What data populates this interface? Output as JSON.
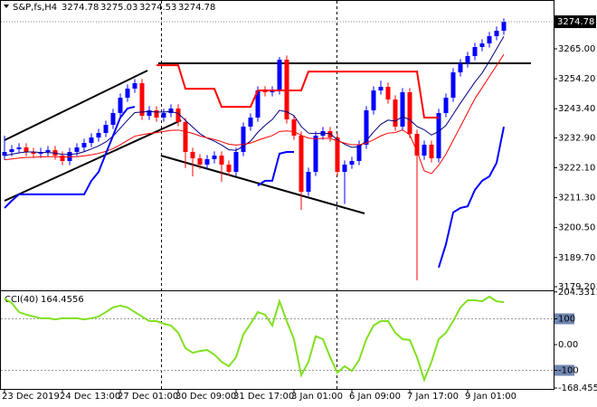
{
  "chart_data": [
    {
      "type": "candlestick",
      "title": "S&P,fs,H4",
      "ohlc": [
        3274.78,
        3275.03,
        3274.53,
        3274.78
      ],
      "categories": [
        "23 Dec 2019",
        null,
        null,
        null,
        null,
        null,
        null,
        null,
        "24 Dec 13:00",
        null,
        null,
        null,
        null,
        null,
        null,
        null,
        "27 Dec 01:00",
        null,
        null,
        null,
        null,
        null,
        null,
        null,
        "30 Dec 09:00",
        null,
        null,
        null,
        null,
        null,
        null,
        null,
        "31 Dec 17:00",
        null,
        null,
        null,
        null,
        null,
        null,
        null,
        "3 Jan 01:00",
        null,
        null,
        null,
        null,
        null,
        null,
        null,
        "6 Jan 09:00",
        null,
        null,
        null,
        null,
        null,
        null,
        null,
        "7 Jan 17:00",
        null,
        null,
        null,
        null,
        null,
        null,
        null,
        "9 Jan 01:00",
        null,
        null,
        null,
        null,
        null
      ],
      "open": [
        3226.5,
        3227.81,
        3228.79,
        3229.44,
        3227.81,
        3227.16,
        3227.81,
        3228.46,
        3226.5,
        3224.55,
        3227.81,
        3229.44,
        3231.07,
        3233.03,
        3234.66,
        3237.6,
        3241.84,
        3247.38,
        3250.65,
        3252.6,
        3240.86,
        3242.82,
        3240.21,
        3241.84,
        3243.47,
        3238.57,
        3227.81,
        3225.52,
        3223.24,
        3225.2,
        3226.5,
        3223.24,
        3220.63,
        3227.81,
        3236.94,
        3240.21,
        3249.99,
        3249.34,
        3249.99,
        3261.09,
        3239.55,
        3233.68,
        3213.45,
        3220.63,
        3233.68,
        3235.31,
        3233.03,
        3220.63,
        3223.24,
        3224.55,
        3230.42,
        3242.82,
        3249.99,
        3251.3,
        3246.73,
        3236.94,
        3249.34,
        3234.33,
        3226.5,
        3230.42,
        3225.52,
        3241.84,
        3247.38,
        3256.52,
        3259.78,
        3262.39,
        3265.65,
        3266.96,
        3269.57,
        3271.53
      ],
      "high": [
        3233.68,
        3230.29,
        3230.94,
        3230.94,
        3229.31,
        3229.31,
        3229.96,
        3229.96,
        3228,
        3229.31,
        3230.94,
        3232.57,
        3234.53,
        3236.16,
        3239.1,
        3243.34,
        3248.88,
        3252.15,
        3254.1,
        3254.1,
        3244.32,
        3244.32,
        3243.34,
        3244.97,
        3244.97,
        3240.07,
        3229.31,
        3227.02,
        3226.7,
        3228,
        3228,
        3224.74,
        3229.31,
        3238.44,
        3241.71,
        3251.49,
        3251.49,
        3251.49,
        3262.07,
        3262.59,
        3241.05,
        3235.18,
        3222.13,
        3235.18,
        3236.81,
        3236.81,
        3234.53,
        3224.74,
        3226.05,
        3231.92,
        3244.32,
        3251.49,
        3253.5,
        3252.8,
        3248.23,
        3250.84,
        3250.84,
        3235.83,
        3231.92,
        3231.92,
        3243.34,
        3248.88,
        3258.02,
        3261.28,
        3263.89,
        3267.15,
        3268.46,
        3271.07,
        3273.03,
        3276
      ],
      "low": [
        3225,
        3226.31,
        3227.29,
        3226.31,
        3225.66,
        3225.66,
        3226.31,
        3225,
        3223.05,
        3223.05,
        3226.31,
        3227.94,
        3229.57,
        3231.53,
        3233.16,
        3236.1,
        3240.34,
        3245.88,
        3249.15,
        3239.36,
        3239.36,
        3238.71,
        3238.71,
        3240.34,
        3237.07,
        3222,
        3219,
        3221.74,
        3221.74,
        3223.7,
        3217,
        3219.13,
        3219.13,
        3226.31,
        3235.44,
        3238.71,
        3247.84,
        3247.84,
        3248.49,
        3238.05,
        3232.18,
        3206.93,
        3211.95,
        3219.13,
        3232.18,
        3231.53,
        3219.13,
        3209,
        3221.74,
        3223.05,
        3228.92,
        3241.32,
        3248.49,
        3245.23,
        3235.44,
        3235.44,
        3232.83,
        3181.48,
        3225,
        3224.02,
        3224.02,
        3240.34,
        3245.88,
        3255.02,
        3258.28,
        3260.89,
        3264.15,
        3265.46,
        3268.07,
        3270.03
      ],
      "close": [
        3227.81,
        3228.79,
        3229.44,
        3227.81,
        3227.16,
        3227.81,
        3228.46,
        3226.5,
        3224.55,
        3227.81,
        3229.44,
        3231.07,
        3233.03,
        3234.66,
        3237.6,
        3241.84,
        3247.38,
        3250.65,
        3252.6,
        3240.86,
        3242.82,
        3240.21,
        3241.84,
        3243.47,
        3238.57,
        3227.81,
        3225.52,
        3223.24,
        3225.2,
        3226.5,
        3223.24,
        3220.63,
        3227.81,
        3236.94,
        3240.21,
        3249.99,
        3249.34,
        3249.99,
        3261.09,
        3239.55,
        3233.68,
        3213.45,
        3220.63,
        3233.68,
        3235.31,
        3233.03,
        3220.63,
        3223.24,
        3224.55,
        3230.42,
        3242.82,
        3249.99,
        3251.3,
        3246.73,
        3236.94,
        3249.34,
        3234.33,
        3226.5,
        3230.42,
        3225.52,
        3241.84,
        3247.38,
        3256.52,
        3259.78,
        3262.39,
        3265.65,
        3266.96,
        3269.57,
        3271.53,
        3274.78
      ],
      "up_color": "#0000ff",
      "down_color": "#ff0000",
      "lines": [
        {
          "color": "#000080",
          "width": 1,
          "values": [
            3226.5,
            3227,
            3227.5,
            3227.8,
            3227.8,
            3227.6,
            3227.6,
            3227.4,
            3226.9,
            3226.9,
            3227.2,
            3227.9,
            3228.9,
            3230,
            3231.4,
            3233.5,
            3236.4,
            3239.3,
            3242,
            3242.2,
            3242.4,
            3242.2,
            3242.2,
            3242.4,
            3241.7,
            3239.2,
            3236.8,
            3234.4,
            3232.8,
            3231.7,
            3230.3,
            3228.6,
            3228.4,
            3229.9,
            3231.7,
            3234.9,
            3237.4,
            3239.5,
            3242.8,
            3242.3,
            3240.9,
            3237,
            3234.6,
            3234.4,
            3234.6,
            3234.4,
            3232.2,
            3230.6,
            3229.5,
            3229.7,
            3231.9,
            3235,
            3237.8,
            3239.3,
            3238.9,
            3240.6,
            3239.4,
            3237,
            3235.8,
            3233.9,
            3235.2,
            3237.4,
            3241.4,
            3245.4,
            3249.2,
            3253,
            3256.3,
            3260.5,
            3265,
            3269.5
          ]
        },
        {
          "color": "#ff0000",
          "width": 1,
          "values": [
            3225,
            3225.3,
            3225.6,
            3225.8,
            3225.9,
            3226,
            3226.1,
            3226.1,
            3226,
            3226,
            3226.1,
            3226.4,
            3226.8,
            3227.3,
            3228,
            3229,
            3230.4,
            3232,
            3233.5,
            3234,
            3234.5,
            3234.8,
            3235.2,
            3235.6,
            3235.7,
            3235.2,
            3234.5,
            3233.6,
            3232.9,
            3232.3,
            3231.5,
            3230.6,
            3230.3,
            3230.6,
            3231,
            3232,
            3232.9,
            3233.7,
            3235.2,
            3235.4,
            3235.2,
            3233.8,
            3232.8,
            3232.6,
            3232.7,
            3232.7,
            3231.8,
            3231,
            3230.4,
            3230.4,
            3231,
            3232.2,
            3233.6,
            3234.6,
            3234.8,
            3235.8,
            3234,
            3228,
            3221,
            3220,
            3223,
            3227,
            3232,
            3237,
            3242,
            3247,
            3251,
            3255,
            3259,
            3263
          ]
        },
        {
          "color": "#ff0000",
          "width": 2,
          "values": [
            null,
            null,
            null,
            null,
            null,
            null,
            null,
            null,
            null,
            null,
            null,
            null,
            null,
            null,
            null,
            null,
            null,
            null,
            null,
            null,
            null,
            3259.1,
            3259.1,
            3259.1,
            3259.1,
            3250.6,
            3250.6,
            3250.6,
            3250.6,
            3250.6,
            3244.1,
            3244.1,
            3244.1,
            3244.1,
            3244.1,
            3250,
            3250,
            3250,
            3250,
            3250,
            3250,
            3250,
            3256.8,
            3256.8,
            3256.8,
            3256.8,
            3256.8,
            3256.8,
            3256.8,
            3256.8,
            3256.8,
            3256.8,
            3256.8,
            3256.8,
            3256.8,
            3256.8,
            3256.8,
            3256.8,
            3240.2,
            3240.2,
            3240.2,
            null,
            null,
            null,
            null,
            null,
            null,
            null,
            null,
            null
          ]
        },
        {
          "color": "#0000ff",
          "width": 2,
          "values": [
            3207.6,
            3210.2,
            3212.5,
            3212.5,
            3212.5,
            3212.5,
            3212.5,
            3212.5,
            3212.5,
            3212.5,
            3212.5,
            3212.5,
            3217.4,
            3220.6,
            3227.2,
            3233.7,
            3240.2,
            3243.5,
            3244.1,
            null,
            null,
            null,
            null,
            null,
            null,
            null,
            null,
            null,
            null,
            null,
            null,
            null,
            null,
            null,
            null,
            3215.7,
            3217.4,
            3217.4,
            3227.2,
            3227.8,
            3227.8,
            null,
            null,
            null,
            null,
            null,
            null,
            null,
            null,
            null,
            null,
            null,
            null,
            null,
            null,
            null,
            null,
            null,
            null,
            null,
            3186.1,
            3194.5,
            3206,
            3207.6,
            3208.2,
            3214.1,
            3217.4,
            3219,
            3223.9,
            3236.9
          ]
        }
      ],
      "trendlines": [
        {
          "x": [
            0,
            19.75
          ],
          "y": [
            3232.05,
            3257.17
          ]
        },
        {
          "x": [
            0,
            24.4
          ],
          "y": [
            3210.19,
            3239.23
          ]
        },
        {
          "x": [
            21.6,
            49.75
          ],
          "y": [
            3226.5,
            3205.62
          ]
        },
        {
          "x": [
            21.25,
            72.75
          ],
          "y": [
            3259.78,
            3259.78
          ]
        }
      ],
      "ylim": [
        3178.22,
        3282.62
      ],
      "yticks": [
        {
          "value": 3265,
          "label": "3265.00"
        },
        {
          "value": 3254.2,
          "label": "3254.20"
        },
        {
          "value": 3243.4,
          "label": "3243.40"
        },
        {
          "value": 3232.9,
          "label": "3232.90"
        },
        {
          "value": 3222.1,
          "label": "3222.10"
        },
        {
          "value": 3211.3,
          "label": "3211.30"
        },
        {
          "value": 3200.5,
          "label": "3200.50"
        },
        {
          "value": 3189.7,
          "label": "3189.70"
        },
        {
          "value": 3179.2,
          "label": "3179.20"
        }
      ]
    },
    {
      "type": "line",
      "title": "CCI(40)",
      "color": "#80e020",
      "values": [
        179,
        161,
        126,
        116,
        109,
        102,
        102,
        98,
        102,
        102,
        102,
        98,
        102,
        109,
        126,
        144,
        151,
        144,
        126,
        109,
        91,
        91,
        81,
        74,
        46,
        -14,
        -32,
        -25,
        -21,
        -39,
        -67,
        -84,
        -49,
        39,
        81,
        126,
        116,
        74,
        168,
        91,
        21,
        -119,
        -67,
        32,
        21,
        -49,
        -109,
        -84,
        -102,
        -60,
        21,
        74,
        91,
        91,
        46,
        21,
        18,
        -49,
        -137,
        -67,
        21,
        46,
        91,
        144,
        172,
        172,
        168,
        186,
        168,
        164.4556
      ],
      "levels": [
        100,
        -100
      ],
      "ylim": [
        -172,
        207
      ],
      "yticks": [
        204.3311,
        100,
        {
          "value": 0,
          "label": "0.00"
        },
        -100,
        -168.4553
      ]
    }
  ]
}
